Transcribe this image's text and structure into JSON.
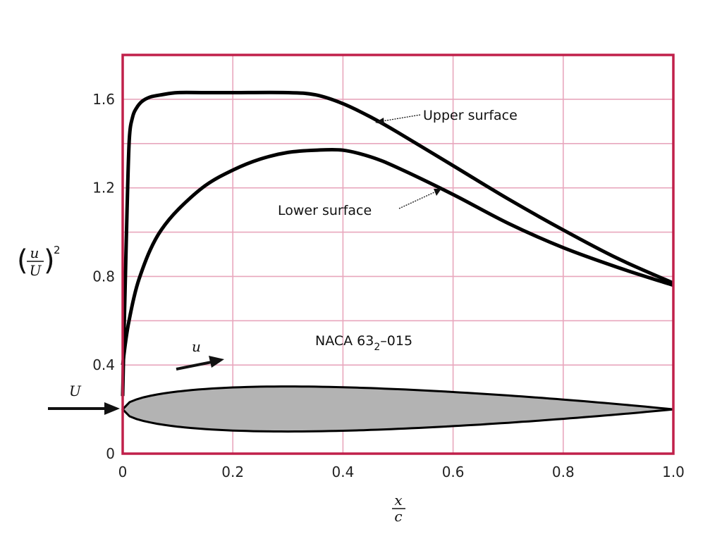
{
  "chart_data": {
    "type": "line",
    "xlim": [
      0,
      1.0
    ],
    "ylim": [
      0,
      1.8
    ],
    "x_ticks": [
      "0",
      "0.2",
      "0.4",
      "0.6",
      "0.8",
      "1.0"
    ],
    "y_ticks": [
      "0",
      "0.4",
      "0.8",
      "1.2",
      "1.6"
    ],
    "x_tick_values": [
      0,
      0.2,
      0.4,
      0.6,
      0.8,
      1.0
    ],
    "y_tick_values": [
      0,
      0.4,
      0.8,
      1.2,
      1.6
    ],
    "x_grid": [
      0,
      0.2,
      0.4,
      0.6,
      0.8,
      1.0
    ],
    "y_grid": [
      0.2,
      0.4,
      0.6,
      0.8,
      1.0,
      1.2,
      1.4,
      1.6
    ],
    "grid": true,
    "xlabel": {
      "numerator": "x",
      "denominator": "c"
    },
    "ylabel": {
      "numerator": "u",
      "denominator": "U",
      "exponent": "2"
    },
    "series": [
      {
        "name": "Upper surface",
        "x": [
          0,
          0.003,
          0.008,
          0.012,
          0.018,
          0.025,
          0.035,
          0.05,
          0.07,
          0.1,
          0.15,
          0.2,
          0.3,
          0.35,
          0.4,
          0.45,
          0.5,
          0.6,
          0.7,
          0.8,
          0.9,
          1.0
        ],
        "y": [
          0.26,
          0.6,
          1.1,
          1.42,
          1.52,
          1.56,
          1.59,
          1.61,
          1.62,
          1.63,
          1.63,
          1.63,
          1.63,
          1.62,
          1.58,
          1.52,
          1.45,
          1.3,
          1.15,
          1.01,
          0.88,
          0.77
        ]
      },
      {
        "name": "Lower surface",
        "x": [
          0,
          0.005,
          0.01,
          0.02,
          0.03,
          0.05,
          0.07,
          0.1,
          0.15,
          0.2,
          0.25,
          0.3,
          0.35,
          0.4,
          0.45,
          0.5,
          0.6,
          0.7,
          0.8,
          0.9,
          1.0
        ],
        "y": [
          0.4,
          0.5,
          0.58,
          0.7,
          0.79,
          0.92,
          1.01,
          1.1,
          1.21,
          1.28,
          1.33,
          1.36,
          1.37,
          1.37,
          1.34,
          1.29,
          1.17,
          1.04,
          0.93,
          0.84,
          0.76
        ]
      }
    ],
    "annotations": {
      "upper": "Upper surface",
      "lower": "Lower surface",
      "airfoil_prefix": "NACA 63",
      "airfoil_subscript": "2",
      "airfoil_suffix": "–015",
      "free_stream": "U",
      "local_velocity": "u"
    },
    "airfoil": {
      "chord_start": 0,
      "chord_end": 1.0,
      "baseline": 0.2,
      "max_thickness_position": 0.3,
      "upper_max": 0.355,
      "lower_min": 0.05,
      "fill_color": "#b3b3b3"
    },
    "colors": {
      "frame": "#c0204a",
      "grid": "#e8a7bd",
      "curve": "#000000"
    }
  }
}
